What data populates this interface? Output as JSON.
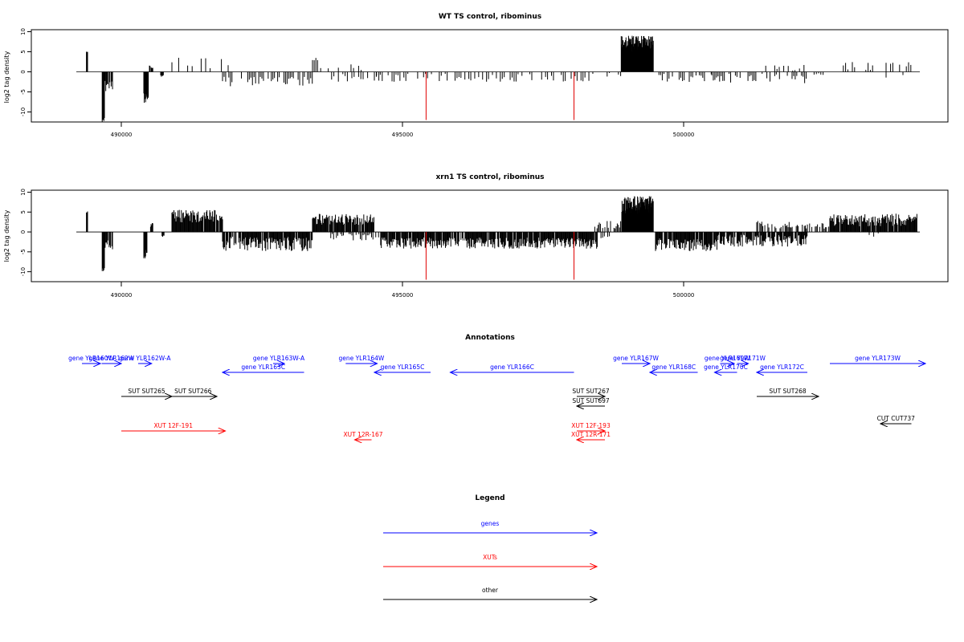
{
  "chart_data": [
    {
      "type": "bar",
      "title": "WT TS control, ribominus",
      "ylabel": "log2 tag density",
      "xlim": [
        488400,
        504700
      ],
      "ylim": [
        -12.5,
        10.5
      ],
      "x_ticks": [
        490000,
        495000,
        500000
      ],
      "x_tick_labels": [
        "490000",
        "495000",
        "500000"
      ],
      "y_ticks": [
        10,
        5,
        0,
        -5,
        -10
      ],
      "y_tick_labels": [
        "10",
        "5",
        "0",
        "-5",
        "-10"
      ],
      "baseline": {
        "from": 489200,
        "to": 504200,
        "value": 0
      },
      "markers": [
        {
          "x": 495420,
          "from": 0,
          "to": -12,
          "color": "#e00000"
        },
        {
          "x": 498050,
          "from": 0,
          "to": -12,
          "color": "#e00000"
        }
      ],
      "bar_color": "#000000",
      "segments": [
        {
          "start": 489380,
          "end": 489400,
          "step": 10,
          "base": 5.2,
          "amp": 0.3,
          "density": 1,
          "pattern": 1
        },
        {
          "start": 489660,
          "end": 489700,
          "step": 10,
          "base": -12.0,
          "amp": 0.5,
          "density": 1,
          "pattern": 2
        },
        {
          "start": 489700,
          "end": 489860,
          "step": 12,
          "base": -3.5,
          "amp": 1.5,
          "density": 0.8,
          "pattern": 3
        },
        {
          "start": 490400,
          "end": 490480,
          "step": 8,
          "base": -7.0,
          "amp": 2.0,
          "density": 1,
          "pattern": 4
        },
        {
          "start": 490500,
          "end": 490560,
          "step": 10,
          "base": 1.3,
          "amp": 0.4,
          "density": 0.7,
          "pattern": 5
        },
        {
          "start": 490700,
          "end": 490770,
          "step": 12,
          "base": -1.0,
          "amp": 0.3,
          "density": 0.7,
          "pattern": 6
        },
        {
          "start": 490900,
          "end": 491900,
          "step": 40,
          "base": 2.0,
          "amp": 1.5,
          "density": 0.45,
          "pattern": 7
        },
        {
          "start": 491800,
          "end": 493400,
          "step": 28,
          "base": -2.4,
          "amp": 1.2,
          "density": 0.6,
          "pattern": 8
        },
        {
          "start": 493400,
          "end": 493500,
          "step": 30,
          "base": 3.0,
          "amp": 0.5,
          "density": 0.8,
          "pattern": 9
        },
        {
          "start": 493500,
          "end": 494300,
          "step": 45,
          "base": 1.2,
          "amp": 0.8,
          "density": 0.45,
          "pattern": 10
        },
        {
          "start": 493700,
          "end": 494700,
          "step": 40,
          "base": -1.5,
          "amp": 1.0,
          "density": 0.45,
          "pattern": 11
        },
        {
          "start": 494500,
          "end": 498400,
          "step": 35,
          "base": -1.5,
          "amp": 1.0,
          "density": 0.55,
          "pattern": 12
        },
        {
          "start": 498600,
          "end": 498900,
          "step": 40,
          "base": -0.8,
          "amp": 0.6,
          "density": 0.5,
          "pattern": 13
        },
        {
          "start": 498890,
          "end": 499460,
          "step": 5,
          "base": 7.0,
          "amp": 2.0,
          "density": 1,
          "pattern": 14
        },
        {
          "start": 499500,
          "end": 500500,
          "step": 30,
          "base": -1.6,
          "amp": 1.1,
          "density": 0.55,
          "pattern": 15
        },
        {
          "start": 500500,
          "end": 502200,
          "step": 28,
          "base": -1.6,
          "amp": 1.3,
          "density": 0.6,
          "pattern": 16
        },
        {
          "start": 501300,
          "end": 502200,
          "step": 40,
          "base": 1.0,
          "amp": 0.8,
          "density": 0.4,
          "pattern": 17
        },
        {
          "start": 502200,
          "end": 502600,
          "step": 40,
          "base": -0.7,
          "amp": 0.4,
          "density": 0.4,
          "pattern": 18
        },
        {
          "start": 502600,
          "end": 504150,
          "step": 40,
          "base": 1.6,
          "amp": 1.2,
          "density": 0.5,
          "pattern": 19
        },
        {
          "start": 503300,
          "end": 504100,
          "step": 60,
          "base": -1.0,
          "amp": 0.8,
          "density": 0.3,
          "pattern": 20
        }
      ]
    },
    {
      "type": "bar",
      "title": "xrn1 TS control, ribominus",
      "ylabel": "log2 tag density",
      "xlim": [
        488400,
        504700
      ],
      "ylim": [
        -12.5,
        10.5
      ],
      "x_ticks": [
        490000,
        495000,
        500000
      ],
      "x_tick_labels": [
        "490000",
        "495000",
        "500000"
      ],
      "y_ticks": [
        10,
        5,
        0,
        -5,
        -10
      ],
      "y_tick_labels": [
        "10",
        "5",
        "0",
        "-5",
        "-10"
      ],
      "baseline": {
        "from": 489200,
        "to": 504200,
        "value": 0
      },
      "markers": [
        {
          "x": 495420,
          "from": 0,
          "to": -12,
          "color": "#e00000"
        },
        {
          "x": 498050,
          "from": 0,
          "to": -12,
          "color": "#e00000"
        }
      ],
      "bar_color": "#000000",
      "segments": [
        {
          "start": 489380,
          "end": 489400,
          "step": 10,
          "base": 5.0,
          "amp": 0.3,
          "density": 1,
          "pattern": 21
        },
        {
          "start": 489660,
          "end": 489700,
          "step": 10,
          "base": -9.5,
          "amp": 0.6,
          "density": 1,
          "pattern": 22
        },
        {
          "start": 489700,
          "end": 489860,
          "step": 12,
          "base": -3.2,
          "amp": 1.2,
          "density": 0.8,
          "pattern": 23
        },
        {
          "start": 490400,
          "end": 490460,
          "step": 8,
          "base": -5.5,
          "amp": 1.2,
          "density": 1,
          "pattern": 24
        },
        {
          "start": 490500,
          "end": 490560,
          "step": 10,
          "base": 1.8,
          "amp": 0.5,
          "density": 0.7,
          "pattern": 25
        },
        {
          "start": 490700,
          "end": 490780,
          "step": 12,
          "base": -1.0,
          "amp": 0.3,
          "density": 0.7,
          "pattern": 26
        },
        {
          "start": 490900,
          "end": 491800,
          "step": 12,
          "base": 4.0,
          "amp": 1.6,
          "density": 0.95,
          "pattern": 27
        },
        {
          "start": 491800,
          "end": 493400,
          "step": 12,
          "base": -3.0,
          "amp": 1.8,
          "density": 0.9,
          "pattern": 28
        },
        {
          "start": 493400,
          "end": 494500,
          "step": 12,
          "base": 3.2,
          "amp": 1.4,
          "density": 0.9,
          "pattern": 29
        },
        {
          "start": 493700,
          "end": 494600,
          "step": 25,
          "base": -1.3,
          "amp": 0.9,
          "density": 0.6,
          "pattern": 30
        },
        {
          "start": 494600,
          "end": 498500,
          "step": 12,
          "base": -2.8,
          "amp": 1.4,
          "density": 0.9,
          "pattern": 31
        },
        {
          "start": 498400,
          "end": 498900,
          "step": 20,
          "base": 1.8,
          "amp": 1.0,
          "density": 0.8,
          "pattern": 32
        },
        {
          "start": 498500,
          "end": 498700,
          "step": 30,
          "base": -1.2,
          "amp": 0.6,
          "density": 0.6,
          "pattern": 33
        },
        {
          "start": 498900,
          "end": 499460,
          "step": 5,
          "base": 6.8,
          "amp": 2.2,
          "density": 1,
          "pattern": 34
        },
        {
          "start": 499500,
          "end": 500600,
          "step": 12,
          "base": -3.2,
          "amp": 1.6,
          "density": 0.9,
          "pattern": 35
        },
        {
          "start": 500600,
          "end": 502200,
          "step": 12,
          "base": -2.2,
          "amp": 1.5,
          "density": 0.85,
          "pattern": 36
        },
        {
          "start": 501300,
          "end": 502200,
          "step": 18,
          "base": 1.8,
          "amp": 1.0,
          "density": 0.7,
          "pattern": 37
        },
        {
          "start": 502200,
          "end": 502600,
          "step": 20,
          "base": 1.5,
          "amp": 0.8,
          "density": 0.7,
          "pattern": 38
        },
        {
          "start": 502600,
          "end": 504150,
          "step": 12,
          "base": 3.0,
          "amp": 1.6,
          "density": 0.95,
          "pattern": 39
        },
        {
          "start": 503300,
          "end": 504100,
          "step": 40,
          "base": -0.8,
          "amp": 0.5,
          "density": 0.3,
          "pattern": 40
        }
      ]
    }
  ],
  "annotations": {
    "title": "Annotations",
    "features": [
      {
        "label": "gene YLR160W",
        "start": 489300,
        "end": 489630,
        "row": 0,
        "strand": "+",
        "color": "#0000ff"
      },
      {
        "label": "gene YLR162W",
        "start": 489650,
        "end": 490000,
        "row": 0,
        "strand": "+",
        "color": "#0000ff"
      },
      {
        "label": "gene YLR162W-A",
        "start": 490300,
        "end": 490540,
        "row": 0,
        "strand": "+",
        "color": "#0000ff"
      },
      {
        "label": "gene YLR163W-A",
        "start": 492700,
        "end": 492900,
        "row": 0,
        "strand": "+",
        "color": "#0000ff"
      },
      {
        "label": "gene YLR163C",
        "start": 491800,
        "end": 493250,
        "row": 1,
        "strand": "-",
        "color": "#0000ff"
      },
      {
        "label": "gene YLR164W",
        "start": 493990,
        "end": 494550,
        "row": 0,
        "strand": "+",
        "color": "#0000ff"
      },
      {
        "label": "gene YLR165C",
        "start": 494500,
        "end": 495500,
        "row": 1,
        "strand": "-",
        "color": "#0000ff"
      },
      {
        "label": "gene YLR166C",
        "start": 495850,
        "end": 498050,
        "row": 1,
        "strand": "-",
        "color": "#0000ff"
      },
      {
        "label": "gene YLR167W",
        "start": 498900,
        "end": 499400,
        "row": 0,
        "strand": "+",
        "color": "#0000ff"
      },
      {
        "label": "gene YLR168C",
        "start": 499400,
        "end": 500250,
        "row": 1,
        "strand": "-",
        "color": "#0000ff"
      },
      {
        "label": "gene YLR169W",
        "start": 500650,
        "end": 500900,
        "row": 0,
        "strand": "+",
        "color": "#0000ff"
      },
      {
        "label": "gene YLR171W",
        "start": 500950,
        "end": 501150,
        "row": 0,
        "strand": "+",
        "color": "#0000ff"
      },
      {
        "label": "gene YLR170C",
        "start": 500550,
        "end": 500950,
        "row": 1,
        "strand": "-",
        "color": "#0000ff"
      },
      {
        "label": "gene YLR172C",
        "start": 501300,
        "end": 502200,
        "row": 1,
        "strand": "-",
        "color": "#0000ff"
      },
      {
        "label": "gene YLR173W",
        "start": 502600,
        "end": 504300,
        "row": 0,
        "strand": "+",
        "color": "#0000ff"
      },
      {
        "label": "SUT SUT265",
        "start": 490000,
        "end": 490900,
        "row": 2,
        "strand": "+",
        "color": "#000000"
      },
      {
        "label": "SUT SUT266",
        "start": 490850,
        "end": 491700,
        "row": 2,
        "strand": "+",
        "color": "#000000"
      },
      {
        "label": "SUT SUT267",
        "start": 498100,
        "end": 498600,
        "row": 2,
        "strand": "+",
        "color": "#000000"
      },
      {
        "label": "SUT SUT697",
        "start": 498100,
        "end": 498600,
        "row": 3,
        "strand": "-",
        "color": "#000000"
      },
      {
        "label": "SUT SUT268",
        "start": 501300,
        "end": 502400,
        "row": 2,
        "strand": "+",
        "color": "#000000"
      },
      {
        "label": "CUT CUT737",
        "start": 503500,
        "end": 504050,
        "row": 4,
        "strand": "-",
        "color": "#000000"
      },
      {
        "label": "XUT 12F-191",
        "start": 490000,
        "end": 491850,
        "row": 5,
        "strand": "+",
        "color": "#ff0000"
      },
      {
        "label": "XUT 12R-167",
        "start": 494150,
        "end": 494450,
        "row": 6,
        "strand": "-",
        "color": "#ff0000"
      },
      {
        "label": "XUT 12F-193",
        "start": 498100,
        "end": 498600,
        "row": 5,
        "strand": "+",
        "color": "#ff0000"
      },
      {
        "label": "XUT 12R-171",
        "start": 498100,
        "end": 498600,
        "row": 6,
        "strand": "-",
        "color": "#ff0000"
      }
    ]
  },
  "legend": {
    "title": "Legend",
    "items": [
      {
        "label": "genes",
        "color": "#0000ff"
      },
      {
        "label": "XUTs",
        "color": "#ff0000"
      },
      {
        "label": "other",
        "color": "#000000"
      }
    ]
  }
}
